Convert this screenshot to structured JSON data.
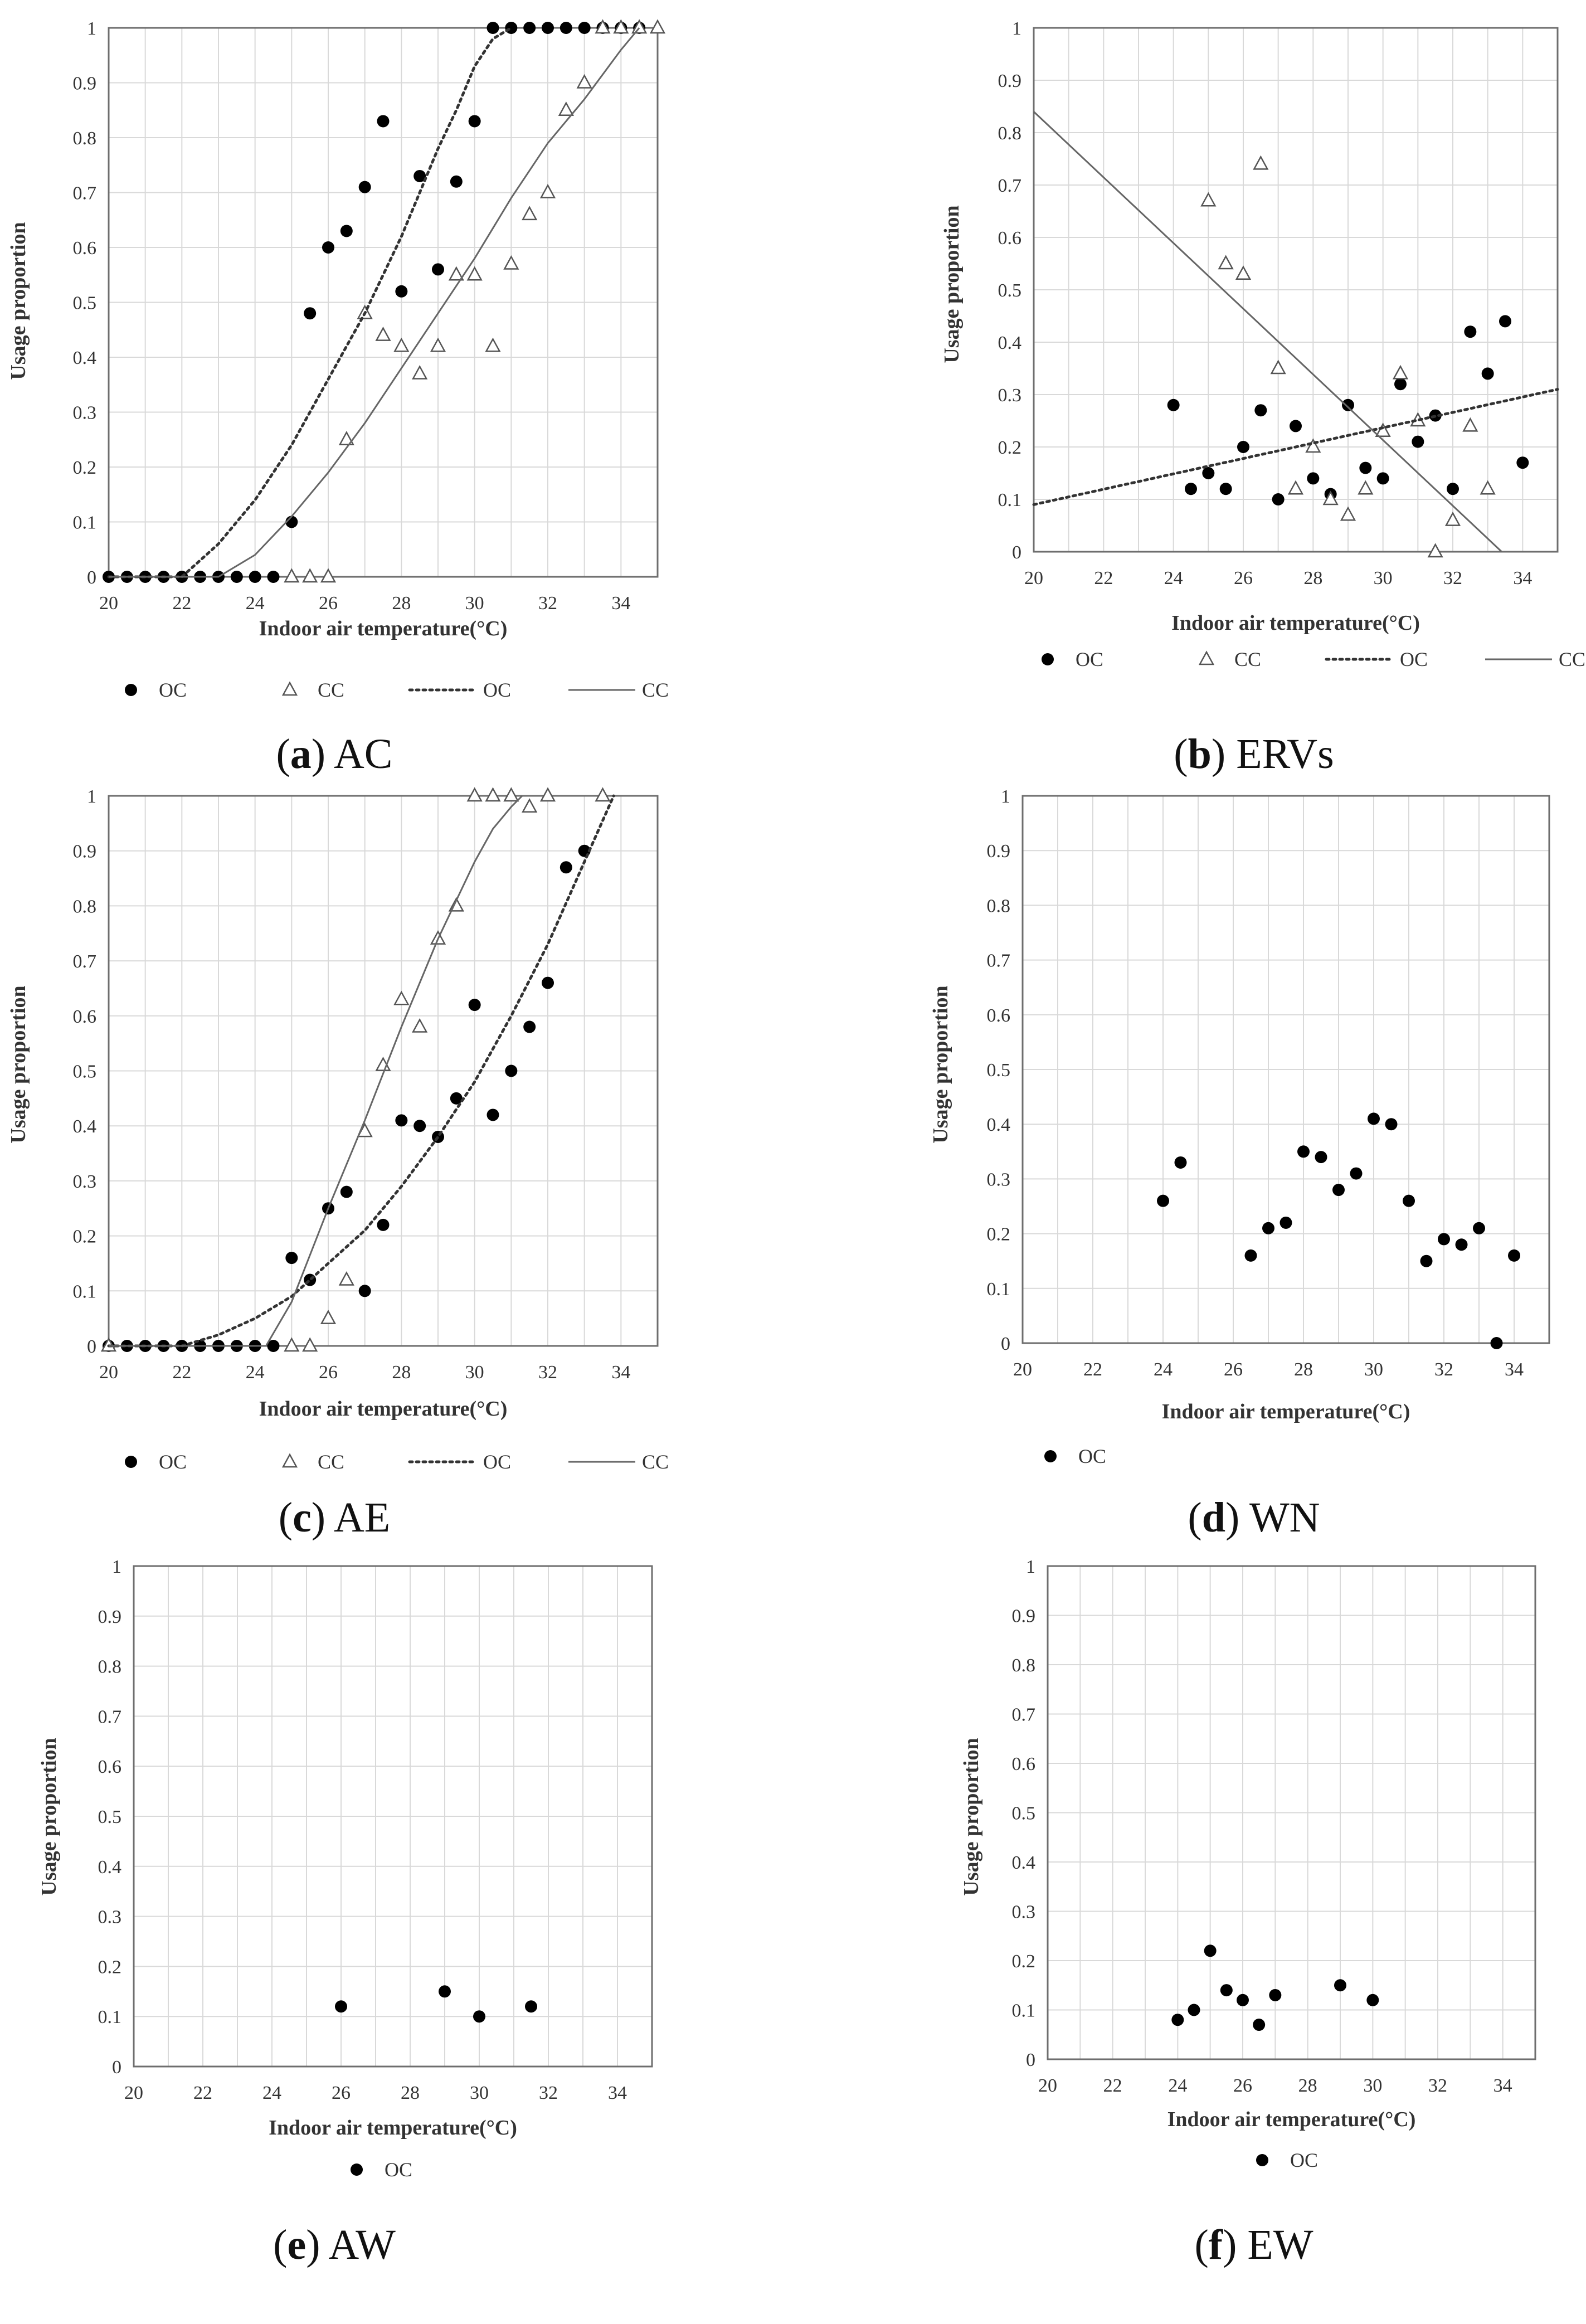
{
  "chart_data": [
    {
      "id": "a",
      "type": "scatter",
      "caption": {
        "letter": "a",
        "label": "AC"
      },
      "xlabel": "Indoor air temperature(°C)",
      "ylabel": "Usage proportion",
      "xlim": [
        20,
        35
      ],
      "ylim": [
        0,
        1
      ],
      "xticks": [
        "20",
        "22",
        "24",
        "26",
        "28",
        "30",
        "32",
        "34"
      ],
      "yticks": [
        "0",
        "0.1",
        "0.2",
        "0.3",
        "0.4",
        "0.5",
        "0.6",
        "0.7",
        "0.8",
        "0.9",
        "1"
      ],
      "legend": [
        "OC",
        "CC",
        "OC",
        "CC"
      ],
      "series": [
        {
          "name": "OC",
          "marker": "circle",
          "x": [
            20,
            20.5,
            21,
            21.5,
            22,
            22.5,
            23,
            23.5,
            24,
            24.5,
            25,
            25.5,
            26,
            26.5,
            27,
            27.5,
            28,
            28.5,
            29,
            29.5,
            30,
            30.5,
            31,
            31.5,
            32,
            32.5,
            33,
            33.5,
            34,
            34.5
          ],
          "y": [
            0,
            0,
            0,
            0,
            0,
            0,
            0,
            0,
            0,
            0,
            0.1,
            0.48,
            0.6,
            0.63,
            0.71,
            0.83,
            0.52,
            0.73,
            0.56,
            0.72,
            0.83,
            1,
            1,
            1,
            1,
            1,
            1,
            1,
            1,
            1
          ]
        },
        {
          "name": "CC",
          "marker": "triangle",
          "x": [
            25,
            25.5,
            26,
            26.5,
            27,
            27.5,
            28,
            28.5,
            29,
            29.5,
            30,
            30.5,
            31,
            31.5,
            32,
            32.5,
            33,
            33.5,
            34,
            34.5,
            35
          ],
          "y": [
            0,
            0,
            0,
            0.25,
            0.48,
            0.44,
            0.42,
            0.37,
            0.42,
            0.55,
            0.55,
            0.42,
            0.57,
            0.66,
            0.7,
            0.85,
            0.9,
            1,
            1,
            1,
            1
          ]
        },
        {
          "name": "OC",
          "line": "dotted",
          "x": [
            20,
            22,
            22.5,
            23,
            24,
            25,
            26,
            27,
            28,
            29,
            29.5,
            30,
            30.5,
            31
          ],
          "y": [
            0,
            0,
            0.03,
            0.06,
            0.14,
            0.24,
            0.36,
            0.48,
            0.62,
            0.78,
            0.85,
            0.93,
            0.98,
            1
          ]
        },
        {
          "name": "CC",
          "line": "solid",
          "x": [
            20,
            23,
            24,
            25,
            26,
            27,
            28,
            29,
            30,
            31,
            32,
            33,
            34,
            34.5
          ],
          "y": [
            0,
            0,
            0.04,
            0.11,
            0.19,
            0.28,
            0.38,
            0.48,
            0.58,
            0.69,
            0.79,
            0.87,
            0.96,
            1
          ]
        }
      ]
    },
    {
      "id": "b",
      "type": "scatter",
      "caption": {
        "letter": "b",
        "label": "ERVs"
      },
      "xlabel": "Indoor air temperature(°C)",
      "ylabel": "Usage proportion",
      "xlim": [
        20,
        35
      ],
      "ylim": [
        0,
        1
      ],
      "xticks": [
        "20",
        "22",
        "24",
        "26",
        "28",
        "30",
        "32",
        "34"
      ],
      "yticks": [
        "0",
        "0.1",
        "0.2",
        "0.3",
        "0.4",
        "0.5",
        "0.6",
        "0.7",
        "0.8",
        "0.9",
        "1"
      ],
      "legend": [
        "OC",
        "CC",
        "OC",
        "CC"
      ],
      "series": [
        {
          "name": "OC",
          "marker": "circle",
          "x": [
            24,
            24.5,
            25,
            25.5,
            26,
            26.5,
            27,
            27.5,
            28,
            28.5,
            29,
            29.5,
            30,
            30.5,
            31,
            31.5,
            32,
            32.5,
            33,
            33.5,
            34
          ],
          "y": [
            0.28,
            0.12,
            0.15,
            0.12,
            0.2,
            0.27,
            0.1,
            0.24,
            0.14,
            0.11,
            0.28,
            0.16,
            0.14,
            0.32,
            0.21,
            0.26,
            0.12,
            0.42,
            0.34,
            0.44,
            0.17
          ]
        },
        {
          "name": "CC",
          "marker": "triangle",
          "x": [
            25,
            25.5,
            26,
            26.5,
            27,
            27.5,
            28,
            28.5,
            29,
            29.5,
            30,
            30.5,
            31,
            31.5,
            32,
            32.5,
            33
          ],
          "y": [
            0.67,
            0.55,
            0.53,
            0.74,
            0.35,
            0.12,
            0.2,
            0.1,
            0.07,
            0.12,
            0.23,
            0.34,
            0.25,
            0,
            0.06,
            0.24,
            0.12
          ]
        },
        {
          "name": "OC",
          "line": "dotted",
          "x": [
            20,
            35
          ],
          "y": [
            0.09,
            0.31
          ]
        },
        {
          "name": "CC",
          "line": "solid",
          "x": [
            20,
            33.4
          ],
          "y": [
            0.84,
            0
          ]
        }
      ]
    },
    {
      "id": "c",
      "type": "scatter",
      "caption": {
        "letter": "c",
        "label": "AE"
      },
      "xlabel": "Indoor air temperature(°C)",
      "ylabel": "Usage proportion",
      "xlim": [
        20,
        35
      ],
      "ylim": [
        0,
        1
      ],
      "xticks": [
        "20",
        "22",
        "24",
        "26",
        "28",
        "30",
        "32",
        "34"
      ],
      "yticks": [
        "0",
        "0.1",
        "0.2",
        "0.3",
        "0.4",
        "0.5",
        "0.6",
        "0.7",
        "0.8",
        "0.9",
        "1"
      ],
      "legend": [
        "OC",
        "CC",
        "OC",
        "CC"
      ],
      "series": [
        {
          "name": "OC",
          "marker": "circle",
          "x": [
            20,
            20.5,
            21,
            21.5,
            22,
            22.5,
            23,
            23.5,
            24,
            24.5,
            25,
            25.5,
            26,
            26.5,
            27,
            27.5,
            28,
            28.5,
            29,
            29.5,
            30,
            30.5,
            31,
            31.5,
            32,
            32.5,
            33
          ],
          "y": [
            0,
            0,
            0,
            0,
            0,
            0,
            0,
            0,
            0,
            0,
            0.16,
            0.12,
            0.25,
            0.28,
            0.1,
            0.22,
            0.41,
            0.4,
            0.38,
            0.45,
            0.62,
            0.42,
            0.5,
            0.58,
            0.66,
            0.87,
            0.9
          ]
        },
        {
          "name": "CC",
          "marker": "triangle",
          "x": [
            20,
            25,
            25.5,
            26,
            26.5,
            27,
            27.5,
            28,
            28.5,
            29,
            29.5,
            30,
            30.5,
            31,
            31.5,
            32,
            33.5
          ],
          "y": [
            0,
            0,
            0,
            0.05,
            0.12,
            0.39,
            0.51,
            0.63,
            0.58,
            0.74,
            0.8,
            1,
            1,
            1,
            0.98,
            1,
            1
          ]
        },
        {
          "name": "OC",
          "line": "dotted",
          "x": [
            20,
            22,
            23,
            24,
            25,
            26,
            27,
            28,
            29,
            30,
            31,
            32,
            33,
            33.8
          ],
          "y": [
            0,
            0,
            0.02,
            0.05,
            0.09,
            0.15,
            0.21,
            0.29,
            0.38,
            0.48,
            0.6,
            0.73,
            0.88,
            1
          ]
        },
        {
          "name": "CC",
          "line": "solid",
          "x": [
            20,
            24.3,
            25,
            26,
            27,
            28,
            29,
            30,
            30.5,
            31,
            31.3
          ],
          "y": [
            0,
            0,
            0.08,
            0.25,
            0.41,
            0.58,
            0.74,
            0.88,
            0.94,
            0.98,
            1
          ]
        }
      ]
    },
    {
      "id": "d",
      "type": "scatter",
      "caption": {
        "letter": "d",
        "label": "WN"
      },
      "xlabel": "Indoor air temperature(°C)",
      "ylabel": "Usage proportion",
      "xlim": [
        20,
        35
      ],
      "ylim": [
        0,
        1
      ],
      "xticks": [
        "20",
        "22",
        "24",
        "26",
        "28",
        "30",
        "32",
        "34"
      ],
      "yticks": [
        "0",
        "0.1",
        "0.2",
        "0.3",
        "0.4",
        "0.5",
        "0.6",
        "0.7",
        "0.8",
        "0.9",
        "1"
      ],
      "legend": [
        "OC"
      ],
      "series": [
        {
          "name": "OC",
          "marker": "circle",
          "x": [
            24,
            24.5,
            26.5,
            27,
            27.5,
            28,
            28.5,
            29,
            29.5,
            30,
            30.5,
            31,
            31.5,
            32,
            32.5,
            33,
            33.5,
            34
          ],
          "y": [
            0.26,
            0.33,
            0.16,
            0.21,
            0.22,
            0.35,
            0.34,
            0.28,
            0.31,
            0.41,
            0.4,
            0.26,
            0.15,
            0.19,
            0.18,
            0.21,
            0,
            0.16
          ]
        }
      ]
    },
    {
      "id": "e",
      "type": "scatter",
      "caption": {
        "letter": "e",
        "label": "AW"
      },
      "xlabel": "Indoor air temperature(°C)",
      "ylabel": "Usage proportion",
      "xlim": [
        20,
        35
      ],
      "ylim": [
        0,
        1
      ],
      "xticks": [
        "20",
        "22",
        "24",
        "26",
        "28",
        "30",
        "32",
        "34"
      ],
      "yticks": [
        "0",
        "0.1",
        "0.2",
        "0.3",
        "0.4",
        "0.5",
        "0.6",
        "0.7",
        "0.8",
        "0.9",
        "1"
      ],
      "legend": [
        "OC"
      ],
      "series": [
        {
          "name": "OC",
          "marker": "circle",
          "x": [
            26,
            29,
            30,
            31.5
          ],
          "y": [
            0.12,
            0.15,
            0.1,
            0.12
          ]
        }
      ]
    },
    {
      "id": "f",
      "type": "scatter",
      "caption": {
        "letter": "f",
        "label": "EW"
      },
      "xlabel": "Indoor air temperature(°C)",
      "ylabel": "Usage proportion",
      "xlim": [
        20,
        35
      ],
      "ylim": [
        0,
        1
      ],
      "xticks": [
        "20",
        "22",
        "24",
        "26",
        "28",
        "30",
        "32",
        "34"
      ],
      "yticks": [
        "0",
        "0.1",
        "0.2",
        "0.3",
        "0.4",
        "0.5",
        "0.6",
        "0.7",
        "0.8",
        "0.9",
        "1"
      ],
      "legend": [
        "OC"
      ],
      "series": [
        {
          "name": "OC",
          "marker": "circle",
          "x": [
            24,
            24.5,
            25,
            25.5,
            26,
            26.5,
            27,
            29,
            30
          ],
          "y": [
            0.08,
            0.1,
            0.22,
            0.14,
            0.12,
            0.07,
            0.13,
            0.15,
            0.12
          ]
        }
      ]
    }
  ]
}
